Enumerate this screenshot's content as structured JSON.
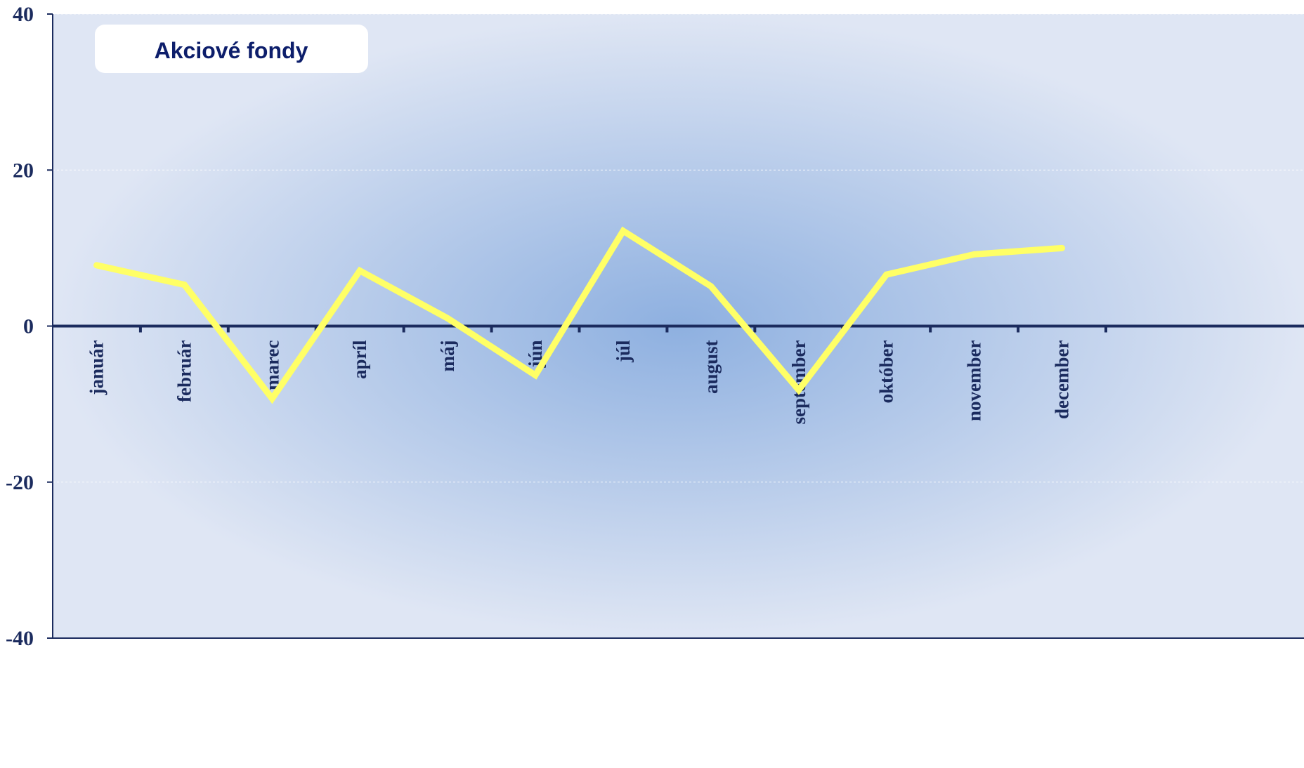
{
  "chart_data": {
    "type": "line",
    "title": "",
    "xlabel": "",
    "ylabel": "",
    "categories": [
      "január",
      "február",
      "marec",
      "apríl",
      "máj",
      "jún",
      "júl",
      "august",
      "september",
      "október",
      "november",
      "december"
    ],
    "series": [
      {
        "name": "Akciové fondy",
        "color": "#ffff66",
        "values": [
          7.8,
          5.3,
          -9.3,
          7.1,
          1.0,
          -6.3,
          12.2,
          5.1,
          -8.2,
          6.6,
          9.2,
          10.0
        ]
      }
    ],
    "ylim": [
      -40,
      40
    ],
    "yticks": [
      -40,
      -20,
      0,
      20,
      40
    ],
    "ytick_labels": [
      "-40",
      "-20",
      "0",
      "20",
      "40"
    ],
    "grid": true,
    "legend": "top-left",
    "colors": {
      "axis": "#1b2b5e",
      "tick_text": "#1b2b5e",
      "plot_background_edge": "#dfe6f4",
      "plot_background_center": "#8eb0e0"
    }
  }
}
